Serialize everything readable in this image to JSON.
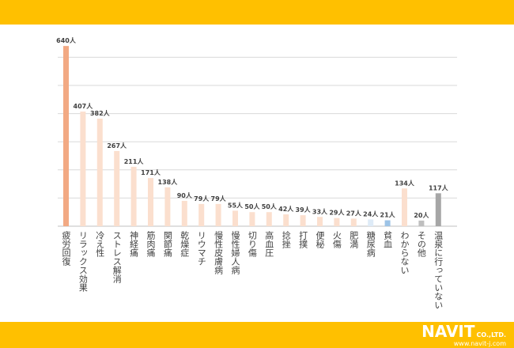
{
  "brand": {
    "name": "NAVIT",
    "suffix": "CO.,LTD.",
    "url": "www.navit-j.com",
    "top_color": "#FFC000",
    "bottom_color": "#FFC000"
  },
  "chart_data": {
    "type": "bar",
    "unit_suffix": "人",
    "categories": [
      "疲労回復",
      "リラックス効果",
      "冷え性",
      "ストレス解消",
      "神経痛",
      "筋肉痛",
      "関節痛",
      "乾燥症",
      "リウマチ",
      "慢性皮膚病",
      "慢性婦人病",
      "切り傷",
      "高血圧",
      "捻挫",
      "打撲",
      "便秘",
      "火傷",
      "肥満",
      "糖尿病",
      "貧血",
      "わからない",
      "その他",
      "温泉に行っていない"
    ],
    "values": [
      640,
      407,
      382,
      267,
      211,
      171,
      138,
      90,
      79,
      79,
      55,
      50,
      50,
      42,
      39,
      33,
      29,
      27,
      24,
      21,
      134,
      20,
      117
    ],
    "colors": [
      "#F2A983",
      "#FBDFCE",
      "#FBDFCE",
      "#FBDFCE",
      "#FBDFCE",
      "#FBDFCE",
      "#FBDFCE",
      "#FBDFCE",
      "#FBDFCE",
      "#FBDFCE",
      "#FBDFCE",
      "#FBDFCE",
      "#FBDFCE",
      "#FBDFCE",
      "#FBDFCE",
      "#FBDFCE",
      "#FBDFCE",
      "#FBDFCE",
      "#DEEBF7",
      "#9DC3E6",
      "#FBDFCE",
      "#BFBFBF",
      "#A6A6A6"
    ],
    "ylim": [
      0,
      700
    ],
    "grid": true,
    "gridline_values": [
      100,
      200,
      300,
      400,
      500,
      600
    ]
  }
}
